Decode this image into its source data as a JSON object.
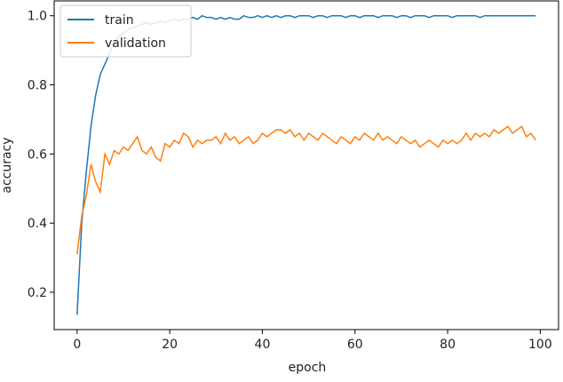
{
  "chart_data": {
    "type": "line",
    "xlabel": "epoch",
    "ylabel": "accuracy",
    "x": [
      0,
      1,
      2,
      3,
      4,
      5,
      6,
      7,
      8,
      9,
      10,
      11,
      12,
      13,
      14,
      15,
      16,
      17,
      18,
      19,
      20,
      21,
      22,
      23,
      24,
      25,
      26,
      27,
      28,
      29,
      30,
      31,
      32,
      33,
      34,
      35,
      36,
      37,
      38,
      39,
      40,
      41,
      42,
      43,
      44,
      45,
      46,
      47,
      48,
      49,
      50,
      51,
      52,
      53,
      54,
      55,
      56,
      57,
      58,
      59,
      60,
      61,
      62,
      63,
      64,
      65,
      66,
      67,
      68,
      69,
      70,
      71,
      72,
      73,
      74,
      75,
      76,
      77,
      78,
      79,
      80,
      81,
      82,
      83,
      84,
      85,
      86,
      87,
      88,
      89,
      90,
      91,
      92,
      93,
      94,
      95,
      96,
      97,
      98,
      99
    ],
    "series": [
      {
        "name": "train",
        "color": "#1f77b4",
        "values": [
          0.135,
          0.4,
          0.55,
          0.68,
          0.77,
          0.83,
          0.86,
          0.89,
          0.92,
          0.94,
          0.95,
          0.96,
          0.965,
          0.97,
          0.975,
          0.98,
          0.975,
          0.98,
          0.985,
          0.98,
          0.985,
          0.99,
          0.985,
          0.99,
          0.99,
          0.995,
          0.99,
          1.0,
          0.995,
          0.995,
          0.99,
          0.995,
          0.99,
          0.995,
          0.99,
          0.99,
          1.0,
          0.995,
          0.995,
          1.0,
          0.995,
          1.0,
          0.995,
          1.0,
          0.995,
          1.0,
          1.0,
          0.995,
          1.0,
          1.0,
          1.0,
          0.995,
          1.0,
          1.0,
          0.995,
          1.0,
          1.0,
          1.0,
          0.995,
          1.0,
          1.0,
          0.995,
          1.0,
          1.0,
          1.0,
          0.995,
          1.0,
          1.0,
          1.0,
          0.995,
          1.0,
          1.0,
          0.995,
          1.0,
          1.0,
          1.0,
          0.995,
          1.0,
          1.0,
          1.0,
          1.0,
          0.995,
          1.0,
          1.0,
          1.0,
          1.0,
          1.0,
          0.995,
          1.0,
          1.0,
          1.0,
          1.0,
          1.0,
          1.0,
          1.0,
          1.0,
          1.0,
          1.0,
          1.0,
          1.0
        ]
      },
      {
        "name": "validation",
        "color": "#ff7f0e",
        "values": [
          0.31,
          0.42,
          0.48,
          0.57,
          0.52,
          0.49,
          0.6,
          0.57,
          0.61,
          0.6,
          0.62,
          0.61,
          0.63,
          0.65,
          0.61,
          0.6,
          0.62,
          0.59,
          0.58,
          0.63,
          0.62,
          0.64,
          0.63,
          0.66,
          0.65,
          0.62,
          0.64,
          0.63,
          0.64,
          0.64,
          0.65,
          0.63,
          0.66,
          0.64,
          0.65,
          0.63,
          0.64,
          0.65,
          0.63,
          0.64,
          0.66,
          0.65,
          0.66,
          0.67,
          0.67,
          0.66,
          0.67,
          0.65,
          0.66,
          0.64,
          0.66,
          0.65,
          0.64,
          0.66,
          0.65,
          0.64,
          0.63,
          0.65,
          0.64,
          0.63,
          0.65,
          0.64,
          0.66,
          0.65,
          0.64,
          0.66,
          0.64,
          0.65,
          0.64,
          0.63,
          0.65,
          0.64,
          0.63,
          0.64,
          0.62,
          0.63,
          0.64,
          0.63,
          0.62,
          0.64,
          0.63,
          0.64,
          0.63,
          0.64,
          0.66,
          0.64,
          0.66,
          0.65,
          0.66,
          0.65,
          0.67,
          0.66,
          0.67,
          0.68,
          0.66,
          0.67,
          0.68,
          0.65,
          0.66,
          0.64
        ]
      }
    ],
    "xlim": [
      -4.95,
      103.95
    ],
    "ylim": [
      0.092,
      1.043
    ],
    "xticks": [
      0,
      20,
      40,
      60,
      80,
      100
    ],
    "yticks": [
      0.2,
      0.4,
      0.6,
      0.8,
      {
        "value": 1,
        "label": "1.0"
      }
    ],
    "legend": "upper left"
  }
}
